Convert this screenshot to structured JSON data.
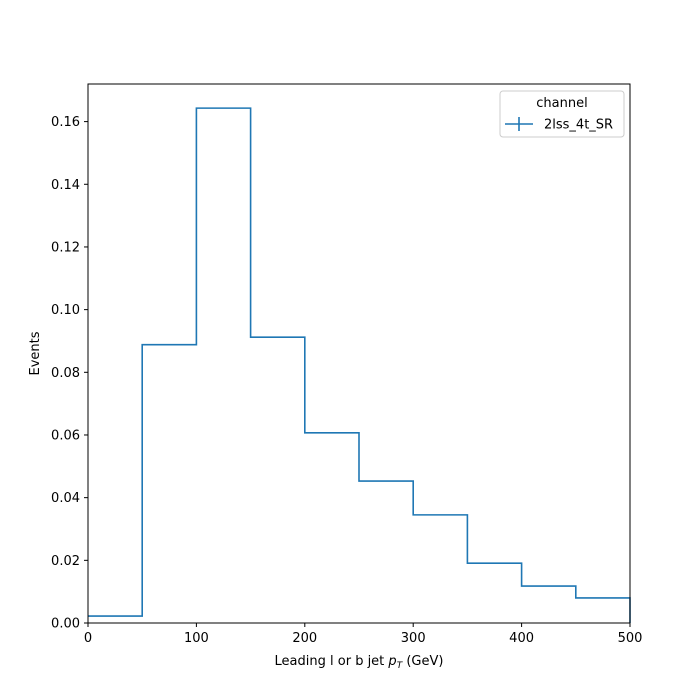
{
  "chart_data": {
    "type": "histogram-step",
    "xlabel_main": "Leading l or b jet ",
    "xlabel_math_base": "p",
    "xlabel_math_sub": "T",
    "xlabel_unit": " (GeV)",
    "ylabel": "Events",
    "xlim": [
      0,
      500
    ],
    "ylim": [
      0,
      0.172
    ],
    "xticks": [
      0,
      100,
      200,
      300,
      400,
      500
    ],
    "yticks": [
      0.0,
      0.02,
      0.04,
      0.06,
      0.08,
      0.1,
      0.12,
      0.14,
      0.16
    ],
    "ytick_labels": [
      "0.00",
      "0.02",
      "0.04",
      "0.06",
      "0.08",
      "0.10",
      "0.12",
      "0.14",
      "0.16"
    ],
    "grid": false,
    "legend": {
      "title": "channel",
      "placement": "top-right",
      "entries": [
        "2lss_4t_SR"
      ]
    },
    "series": [
      {
        "name": "2lss_4t_SR",
        "color": "#1f77b4",
        "bin_edges": [
          0,
          50,
          100,
          150,
          200,
          250,
          300,
          350,
          400,
          450,
          500
        ],
        "values": [
          0.0022,
          0.0888,
          0.1643,
          0.0912,
          0.0607,
          0.0453,
          0.0345,
          0.0191,
          0.0118,
          0.008
        ]
      }
    ]
  }
}
